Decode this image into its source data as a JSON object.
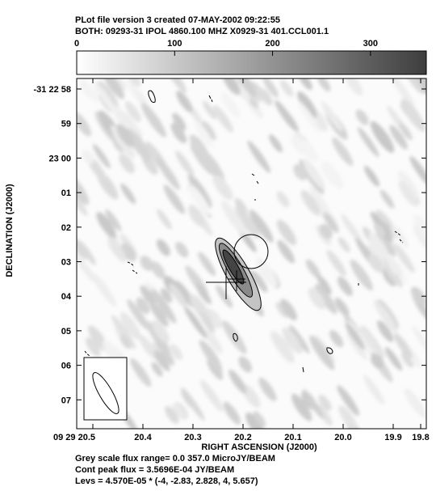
{
  "header": {
    "line1": "PLot file version 3  created 07-MAY-2002 09:22:55",
    "line2": "BOTH: 09293-31  IPOL  4860.100 MHZ  X0929-31 401.CCL001.1"
  },
  "colorbar": {
    "ticks": [
      "0",
      "100",
      "200",
      "300"
    ],
    "tick_values": [
      0,
      100,
      200,
      300
    ],
    "range": [
      0,
      357.0
    ]
  },
  "chart_data": {
    "type": "heatmap",
    "title": "",
    "xlabel": "RIGHT ASCENSION (J2000)",
    "ylabel": "DECLINATION (J2000)",
    "x_ticks": [
      "09 29 20.5",
      "20.4",
      "20.3",
      "20.2",
      "20.1",
      "20.0",
      "19.9",
      "19.8"
    ],
    "y_ticks": [
      "-31 22 58",
      "59",
      "23 00",
      "01",
      "02",
      "03",
      "04",
      "05",
      "06",
      "07"
    ],
    "grey_scale_range": [
      0.0,
      357.0
    ],
    "grey_scale_unit": "MicroJY/BEAM",
    "cont_peak_flux": 0.00035696,
    "cont_peak_flux_unit": "JY/BEAM",
    "contour_base": 4.57e-05,
    "contour_multipliers": [
      -4,
      -2.83,
      2.828,
      4,
      5.657
    ],
    "grid": false
  },
  "footer": {
    "line1": "Grey scale flux range= 0.0 357.0 MicroJY/BEAM",
    "line2": "Cont peak flux =  3.5696E-04 JY/BEAM",
    "line3": "Levs = 4.570E-05 * (-4, -2.83, 2.828, 4, 5.657)"
  }
}
